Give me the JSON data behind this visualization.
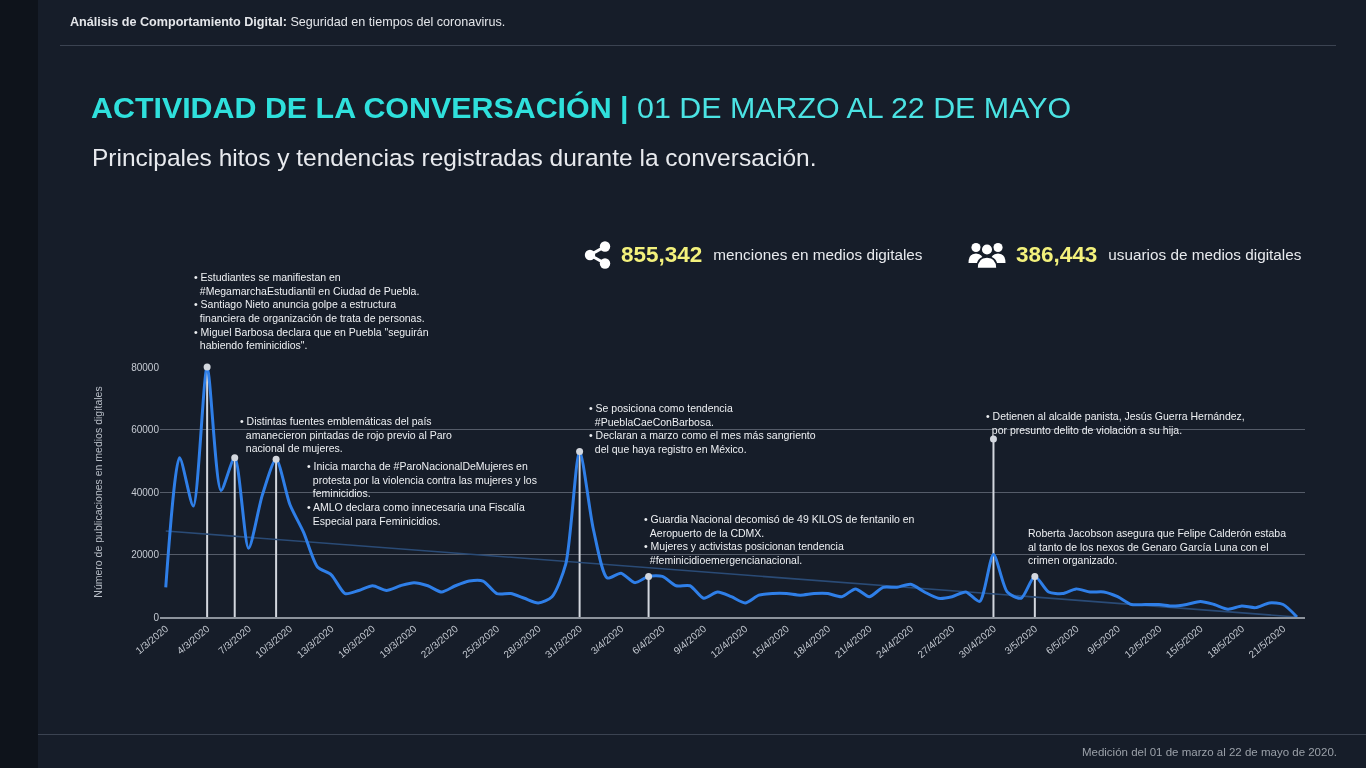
{
  "chart_data": {
    "type": "line",
    "title": "ACTIVIDAD DE LA CONVERSACIÓN | 01 DE MARZO AL 22 DE MAYO",
    "subtitle": "Principales hitos y tendencias registradas durante la conversación.",
    "ylabel": "Número de publicaciones en medios digitales",
    "x": [
      "2020-03-01",
      "2020-03-02",
      "2020-03-03",
      "2020-03-04",
      "2020-03-05",
      "2020-03-06",
      "2020-03-07",
      "2020-03-08",
      "2020-03-09",
      "2020-03-10",
      "2020-03-11",
      "2020-03-12",
      "2020-03-13",
      "2020-03-14",
      "2020-03-15",
      "2020-03-16",
      "2020-03-17",
      "2020-03-18",
      "2020-03-19",
      "2020-03-20",
      "2020-03-21",
      "2020-03-22",
      "2020-03-23",
      "2020-03-24",
      "2020-03-25",
      "2020-03-26",
      "2020-03-27",
      "2020-03-28",
      "2020-03-29",
      "2020-03-30",
      "2020-03-31",
      "2020-04-01",
      "2020-04-02",
      "2020-04-03",
      "2020-04-04",
      "2020-04-05",
      "2020-04-06",
      "2020-04-07",
      "2020-04-08",
      "2020-04-09",
      "2020-04-10",
      "2020-04-11",
      "2020-04-12",
      "2020-04-13",
      "2020-04-14",
      "2020-04-15",
      "2020-04-16",
      "2020-04-17",
      "2020-04-18",
      "2020-04-19",
      "2020-04-20",
      "2020-04-21",
      "2020-04-22",
      "2020-04-23",
      "2020-04-24",
      "2020-04-25",
      "2020-04-26",
      "2020-04-27",
      "2020-04-28",
      "2020-04-29",
      "2020-04-30",
      "2020-05-01",
      "2020-05-02",
      "2020-05-03",
      "2020-05-04",
      "2020-05-05",
      "2020-05-06",
      "2020-05-07",
      "2020-05-08",
      "2020-05-09",
      "2020-05-10",
      "2020-05-11",
      "2020-05-12",
      "2020-05-13",
      "2020-05-14",
      "2020-05-15",
      "2020-05-16",
      "2020-05-17",
      "2020-05-18",
      "2020-05-19",
      "2020-05-20",
      "2020-05-21",
      "2020-05-22"
    ],
    "series": [
      {
        "color": "#2f7fe8",
        "values": [
          9500,
          51000,
          35500,
          80000,
          40500,
          51000,
          22000,
          39000,
          50500,
          36000,
          27000,
          16000,
          13500,
          7500,
          8500,
          10000,
          8500,
          10000,
          11000,
          10000,
          8000,
          10000,
          11500,
          11500,
          7500,
          7500,
          6000,
          4500,
          6500,
          17000,
          53000,
          28000,
          12500,
          14000,
          11000,
          13000,
          13000,
          10000,
          10000,
          6000,
          8000,
          6500,
          4500,
          7000,
          7500,
          7500,
          7000,
          7500,
          7500,
          6500,
          9000,
          6500,
          9500,
          9500,
          10500,
          8000,
          6000,
          6500,
          8000,
          5000,
          20000,
          8000,
          6000,
          13000,
          8000,
          7500,
          9000,
          8000,
          8000,
          6500,
          4000,
          4000,
          4000,
          3500,
          4000,
          5000,
          4000,
          2500,
          3500,
          3000,
          4500,
          4000,
          0
        ]
      },
      {
        "type": "line",
        "color": "#2a4b76",
        "x": [
          "2020-03-01",
          "2020-05-22"
        ],
        "values": [
          27500,
          0
        ]
      },
      {
        "type": "lollipop",
        "color": "#d3d7de",
        "x": [
          "2020-03-04",
          "2020-03-06",
          "2020-03-09",
          "2020-03-31",
          "2020-04-05",
          "2020-04-30",
          "2020-05-03"
        ],
        "values": [
          80000,
          51000,
          50500,
          53000,
          13000,
          57000,
          13000
        ]
      }
    ],
    "xlim": [
      "2020-02-29T14:00",
      "2020-05-22T14:00"
    ],
    "xticks": [
      {
        "value": "2020-03-01",
        "label": "1/3/2020"
      },
      {
        "value": "2020-03-04",
        "label": "4/3/2020"
      },
      {
        "value": "2020-03-07",
        "label": "7/3/2020"
      },
      {
        "value": "2020-03-10",
        "label": "10/3/2020"
      },
      {
        "value": "2020-03-13",
        "label": "13/3/2020"
      },
      {
        "value": "2020-03-16",
        "label": "16/3/2020"
      },
      {
        "value": "2020-03-19",
        "label": "19/3/2020"
      },
      {
        "value": "2020-03-22",
        "label": "22/3/2020"
      },
      {
        "value": "2020-03-25",
        "label": "25/3/2020"
      },
      {
        "value": "2020-03-28",
        "label": "28/3/2020"
      },
      {
        "value": "2020-03-31",
        "label": "31/3/2020"
      },
      {
        "value": "2020-04-03",
        "label": "3/4/2020"
      },
      {
        "value": "2020-04-06",
        "label": "6/4/2020"
      },
      {
        "value": "2020-04-09",
        "label": "9/4/2020"
      },
      {
        "value": "2020-04-12",
        "label": "12/4/2020"
      },
      {
        "value": "2020-04-15",
        "label": "15/4/2020"
      },
      {
        "value": "2020-04-18",
        "label": "18/4/2020"
      },
      {
        "value": "2020-04-21",
        "label": "21/4/2020"
      },
      {
        "value": "2020-04-24",
        "label": "24/4/2020"
      },
      {
        "value": "2020-04-27",
        "label": "27/4/2020"
      },
      {
        "value": "2020-04-30",
        "label": "30/4/2020"
      },
      {
        "value": "2020-05-03",
        "label": "3/5/2020"
      },
      {
        "value": "2020-05-06",
        "label": "6/5/2020"
      },
      {
        "value": "2020-05-09",
        "label": "9/5/2020"
      },
      {
        "value": "2020-05-12",
        "label": "12/5/2020"
      },
      {
        "value": "2020-05-15",
        "label": "15/5/2020"
      },
      {
        "value": "2020-05-18",
        "label": "18/5/2020"
      },
      {
        "value": "2020-05-21",
        "label": "21/5/2020"
      }
    ],
    "ylim": [
      0,
      80000
    ],
    "yticks": [
      0,
      20000,
      40000,
      60000,
      80000
    ],
    "grid": "y",
    "annotations": [
      "Análisis de Comportamiento Digital: Seguridad en tiempos del coronavirus.",
      "855,342 menciones en medios digitales",
      "386,443 usuarios de medios digitales",
      {
        "text": "• Estudiantes se manifiestan en #MegamarchaEstudiantil en Ciudad de Puebla. • Santiago Nieto anuncia golpe a estructura financiera de organización de trata de personas. • Miguel Barbosa declara que en Puebla \"seguirán habiendo feminicidios\".",
        "x": "2020-03-04",
        "y": 80000
      },
      {
        "text": "• Distintas fuentes emblemáticas del país amanecieron pintadas de rojo previo al Paro nacional de mujeres.",
        "x": "2020-03-06",
        "y": 51000
      },
      {
        "text": "• Inicia marcha de #ParoNacionalDeMujeres en protesta por la violencia contra las mujeres y los feminicidios. • AMLO declara como innecesaria una Fiscalía Especial para Feminicidios.",
        "x": "2020-03-09",
        "y": 50500
      },
      {
        "text": "• Se posiciona como tendencia #PueblaCaeConBarbosa. • Declaran a marzo como el mes más sangriento del que haya registro en México.",
        "x": "2020-03-31",
        "y": 53000
      },
      {
        "text": "• Guardia Nacional decomisó de 49 KILOS de fentanilo en Aeropuerto de la CDMX. • Mujeres y activistas posicionan tendencia #feminicidioemergencianacional.",
        "x": "2020-04-05",
        "y": 13000
      },
      {
        "text": "• Detienen al alcalde panista, Jesús Guerra Hernández, por presunto delito de violación a su hija.",
        "x": "2020-04-30",
        "y": 57000
      },
      {
        "text": "Roberta Jacobson asegura que Felipe Calderón estaba al tanto de los nexos de Genaro García Luna con el crimen organizado.",
        "x": "2020-05-03",
        "y": 13000
      },
      "Medición del 01 de marzo al 22 de mayo de 2020."
    ]
  }
}
